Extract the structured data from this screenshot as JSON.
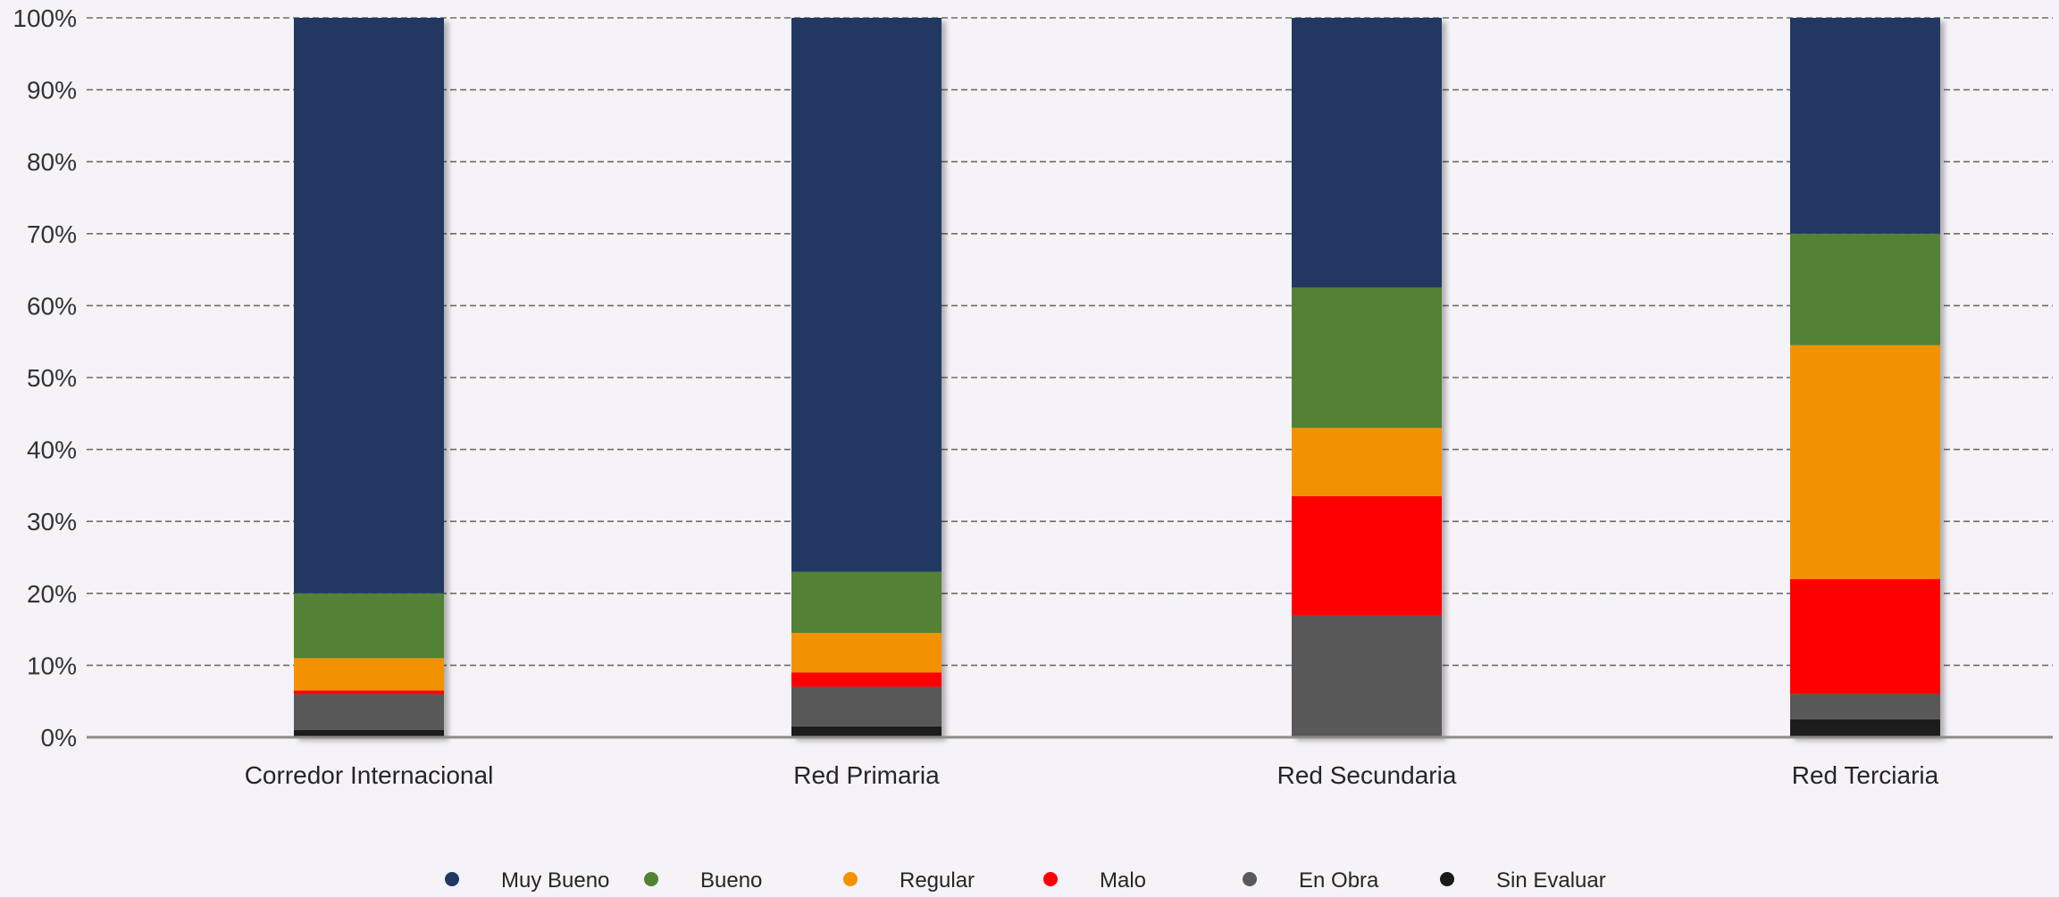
{
  "chart_data": {
    "type": "bar",
    "stacked": true,
    "normalized": true,
    "categories": [
      "Corredor Internacional",
      "Red Primaria",
      "Red Secundaria",
      "Red Terciaria"
    ],
    "series": [
      {
        "name": "Sin Evaluar",
        "color": "#1a1a1a",
        "values": [
          1.0,
          1.5,
          0.0,
          2.5
        ]
      },
      {
        "name": "En Obra",
        "color": "#595959",
        "values": [
          5.0,
          5.5,
          17.0,
          3.5
        ]
      },
      {
        "name": "Malo",
        "color": "#ff0000",
        "values": [
          0.5,
          2.0,
          16.5,
          16.0
        ]
      },
      {
        "name": "Regular",
        "color": "#f39200",
        "values": [
          4.5,
          5.5,
          9.5,
          32.5
        ]
      },
      {
        "name": "Bueno",
        "color": "#538135",
        "values": [
          9.0,
          8.5,
          19.5,
          15.5
        ]
      },
      {
        "name": "Muy Bueno",
        "color": "#203864",
        "values": [
          80.0,
          77.0,
          37.5,
          30.0
        ]
      }
    ],
    "legend_order": [
      "Muy Bueno",
      "Bueno",
      "Regular",
      "Malo",
      "En Obra",
      "Sin Evaluar"
    ],
    "y_ticks": [
      "0%",
      "10%",
      "20%",
      "30%",
      "40%",
      "50%",
      "60%",
      "70%",
      "80%",
      "90%",
      "100%"
    ],
    "ylim": [
      0,
      100
    ],
    "grid": true,
    "legend_position": "bottom"
  }
}
